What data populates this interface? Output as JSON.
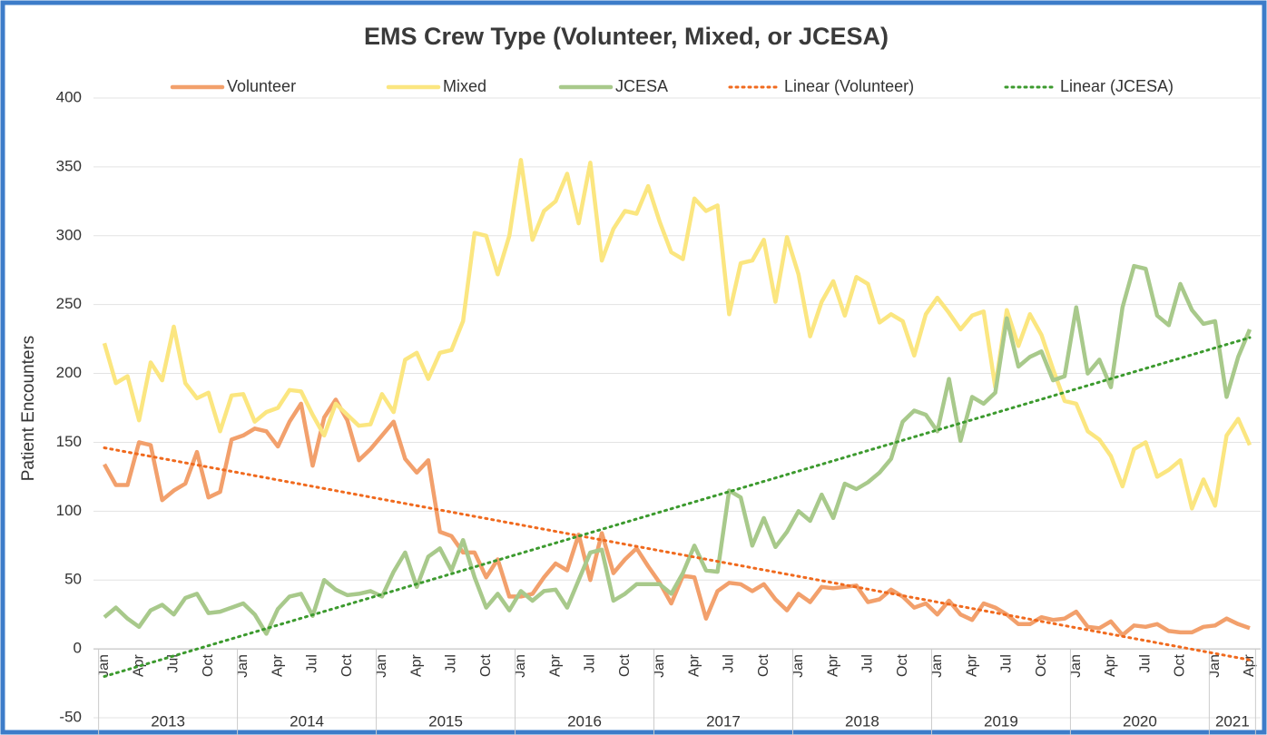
{
  "chart_data": {
    "type": "line",
    "title": "EMS Crew Type (Volunteer, Mixed, or JCESA)",
    "y_label": "Patient Encounters",
    "categories": [
      "Jan",
      null,
      null,
      "Apr",
      null,
      null,
      "Jul",
      null,
      null,
      "Oct",
      null,
      null,
      "Jan",
      null,
      null,
      "Apr",
      null,
      null,
      "Jul",
      null,
      null,
      "Oct",
      null,
      null,
      "Jan",
      null,
      null,
      "Apr",
      null,
      null,
      "Jul",
      null,
      null,
      "Oct",
      null,
      null,
      "Jan",
      null,
      null,
      "Apr",
      null,
      null,
      "Jul",
      null,
      null,
      "Oct",
      null,
      null,
      "Jan",
      null,
      null,
      "Apr",
      null,
      null,
      "Jul",
      null,
      null,
      "Oct",
      null,
      null,
      "Jan",
      null,
      null,
      "Apr",
      null,
      null,
      "Jul",
      null,
      null,
      "Oct",
      null,
      null,
      "Jan",
      null,
      null,
      "Apr",
      null,
      null,
      "Jul",
      null,
      null,
      "Oct",
      null,
      null,
      "Jan",
      null,
      null,
      "Apr",
      null,
      null,
      "Jul",
      null,
      null,
      "Oct",
      null,
      null,
      "Jan",
      null,
      null,
      "Apr"
    ],
    "years": [
      "2013",
      "2014",
      "2015",
      "2016",
      "2017",
      "2018",
      "2019",
      "2020",
      "2021"
    ],
    "series": [
      {
        "name": "Volunteer",
        "color": "#f2a06c",
        "values": [
          134,
          119,
          119,
          150,
          148,
          108,
          115,
          120,
          143,
          110,
          114,
          152,
          155,
          160,
          158,
          147,
          165,
          178,
          133,
          168,
          181,
          166,
          137,
          145,
          155,
          165,
          138,
          128,
          137,
          85,
          82,
          70,
          70,
          52,
          65,
          38,
          38,
          40,
          52,
          62,
          57,
          83,
          50,
          84,
          55,
          65,
          73,
          60,
          48,
          33,
          53,
          52,
          22,
          42,
          48,
          47,
          42,
          47,
          36,
          28,
          40,
          34,
          45,
          44,
          45,
          46,
          34,
          36,
          43,
          38,
          30,
          33,
          25,
          35,
          25,
          21,
          33,
          30,
          25,
          18,
          18,
          23,
          21,
          22,
          27,
          16,
          15,
          20,
          10,
          17,
          16,
          18,
          13,
          12,
          12,
          16,
          17,
          22,
          18,
          15
        ]
      },
      {
        "name": "Mixed",
        "color": "#fbe680",
        "values": [
          222,
          193,
          198,
          166,
          208,
          195,
          234,
          193,
          182,
          186,
          158,
          184,
          185,
          165,
          172,
          175,
          188,
          187,
          170,
          155,
          178,
          170,
          162,
          163,
          185,
          172,
          210,
          215,
          196,
          215,
          217,
          238,
          302,
          300,
          272,
          300,
          355,
          297,
          318,
          325,
          345,
          309,
          353,
          282,
          305,
          318,
          316,
          336,
          310,
          288,
          283,
          327,
          318,
          322,
          243,
          280,
          282,
          297,
          252,
          299,
          272,
          227,
          252,
          267,
          242,
          270,
          265,
          237,
          243,
          238,
          213,
          243,
          255,
          244,
          232,
          242,
          245,
          190,
          246,
          220,
          243,
          228,
          203,
          180,
          178,
          158,
          152,
          140,
          118,
          145,
          150,
          125,
          130,
          137,
          102,
          123,
          104,
          155,
          167,
          148
        ]
      },
      {
        "name": "JCESA",
        "color": "#a8c98b",
        "values": [
          23,
          30,
          22,
          16,
          28,
          32,
          25,
          37,
          40,
          26,
          27,
          30,
          33,
          25,
          11,
          29,
          38,
          40,
          24,
          50,
          43,
          39,
          40,
          42,
          38,
          56,
          70,
          45,
          67,
          73,
          57,
          79,
          52,
          30,
          40,
          28,
          42,
          35,
          42,
          43,
          30,
          50,
          70,
          72,
          35,
          40,
          47,
          47,
          47,
          40,
          55,
          75,
          57,
          56,
          115,
          110,
          75,
          95,
          74,
          85,
          100,
          93,
          112,
          95,
          120,
          116,
          121,
          128,
          138,
          165,
          173,
          170,
          158,
          196,
          151,
          183,
          178,
          186,
          240,
          205,
          212,
          216,
          195,
          198,
          248,
          200,
          210,
          190,
          248,
          278,
          276,
          242,
          235,
          265,
          246,
          236,
          238,
          183,
          212,
          232
        ]
      }
    ],
    "trendlines": [
      {
        "name": "Linear (Volunteer)",
        "color": "#f06a1e",
        "from": 146,
        "to": -8
      },
      {
        "name": "Linear (JCESA)",
        "color": "#3c9a2e",
        "from": -20,
        "to": 226
      }
    ],
    "ylim": [
      -50,
      400
    ],
    "yticks": [
      -50,
      0,
      50,
      100,
      150,
      200,
      250,
      300,
      350,
      400
    ],
    "grid": true
  }
}
